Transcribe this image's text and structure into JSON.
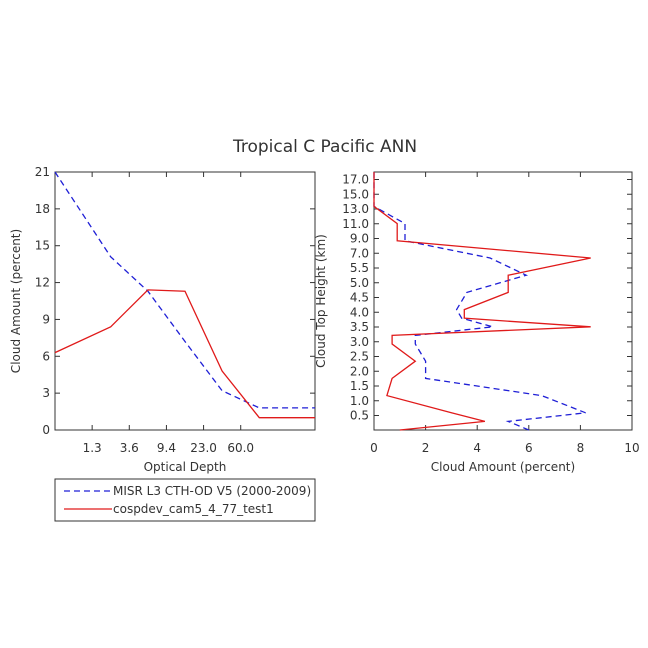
{
  "title": "Tropical C Pacific ANN",
  "colors": {
    "misr": "#1f1fd6",
    "cosp": "#e01a1a",
    "axis": "#333333"
  },
  "legend": {
    "items": [
      {
        "label": "MISR L3 CTH-OD V5 (2000-2009)",
        "color": "#1f1fd6",
        "style": "dashed"
      },
      {
        "label": "cospdev_cam5_4_77_test1",
        "color": "#e01a1a",
        "style": "solid"
      }
    ]
  },
  "chart_data": [
    {
      "type": "line",
      "xlabel": "Optical Depth",
      "ylabel": "Cloud Amount (percent)",
      "x_ticks": [
        "1.3",
        "3.6",
        "9.4",
        "23.0",
        "60.0"
      ],
      "y_ticks": [
        "0",
        "3",
        "6",
        "9",
        "12",
        "15",
        "18",
        "21"
      ],
      "ylim": [
        0,
        21
      ],
      "x_bins": 7,
      "series": [
        {
          "name": "MISR L3 CTH-OD V5 (2000-2009)",
          "style": "dashed",
          "x": [
            0,
            1,
            2,
            3,
            4,
            5,
            6
          ],
          "values": [
            21.0,
            14.1,
            11.3,
            7.2,
            3.2,
            1.8,
            1.8
          ]
        },
        {
          "name": "cospdev_cam5_4_77_test1",
          "style": "solid",
          "x": [
            0,
            1,
            2,
            3,
            4,
            5,
            6
          ],
          "values": [
            6.3,
            8.4,
            11.4,
            11.3,
            4.8,
            1.0,
            1.0
          ]
        }
      ]
    },
    {
      "type": "line",
      "xlabel": "Cloud Amount (percent)",
      "ylabel": "Cloud Top Height (km)",
      "x_ticks": [
        "0",
        "2",
        "4",
        "6",
        "8",
        "10"
      ],
      "xlim": [
        0,
        10
      ],
      "y_ticks": [
        "0.5",
        "1.0",
        "1.5",
        "2.0",
        "2.5",
        "3.0",
        "3.5",
        "4.0",
        "4.5",
        "5.0",
        "5.5",
        "7.0",
        "9.0",
        "11.0",
        "13.0",
        "15.0",
        "17.0"
      ],
      "y_levels": 15,
      "series": [
        {
          "name": "MISR L3 CTH-OD V5 (2000-2009)",
          "style": "dashed",
          "height_level": [
            0,
            0.5,
            1,
            2,
            3,
            4,
            5,
            5.5,
            6,
            6.5,
            7,
            8,
            9,
            10,
            11,
            12,
            13,
            14,
            15
          ],
          "values": [
            6.0,
            5.2,
            8.2,
            6.5,
            2.0,
            2.0,
            1.6,
            1.6,
            4.6,
            3.4,
            3.2,
            3.6,
            5.9,
            4.5,
            1.2,
            1.2,
            0.0,
            0.0,
            0.0
          ]
        },
        {
          "name": "cospdev_cam5_4_77_test1",
          "style": "solid",
          "height_level": [
            0,
            0.5,
            1,
            2,
            3,
            4,
            5,
            5.5,
            6,
            6.5,
            7,
            8,
            9,
            10,
            11,
            12,
            13,
            14,
            15
          ],
          "values": [
            1.0,
            4.3,
            3.0,
            0.5,
            0.7,
            1.6,
            0.7,
            0.7,
            8.4,
            3.5,
            3.5,
            5.2,
            5.2,
            8.4,
            0.9,
            0.9,
            0.0,
            0.0,
            0.0
          ]
        }
      ]
    }
  ]
}
